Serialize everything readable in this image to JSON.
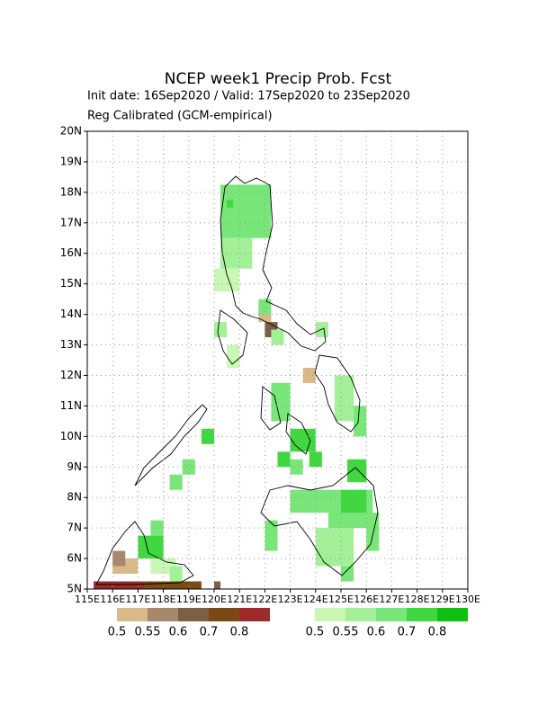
{
  "chart_data": {
    "type": "grid-map",
    "title": "NCEP week1 Precip Prob. Fcst",
    "subtitle": "Init date: 16Sep2020 / Valid: 17Sep2020 to 23Sep2020",
    "note": "Reg Calibrated (GCM-empirical)",
    "xlim": [
      115,
      130
    ],
    "ylim": [
      5,
      20
    ],
    "grid": true,
    "xticks": [
      {
        "value": 115,
        "label": "115E"
      },
      {
        "value": 116,
        "label": "116E"
      },
      {
        "value": 117,
        "label": "117E"
      },
      {
        "value": 118,
        "label": "118E"
      },
      {
        "value": 119,
        "label": "119E"
      },
      {
        "value": 120,
        "label": "120E"
      },
      {
        "value": 121,
        "label": "121E"
      },
      {
        "value": 122,
        "label": "122E"
      },
      {
        "value": 123,
        "label": "123E"
      },
      {
        "value": 124,
        "label": "124E"
      },
      {
        "value": 125,
        "label": "125E"
      },
      {
        "value": 126,
        "label": "126E"
      },
      {
        "value": 127,
        "label": "127E"
      },
      {
        "value": 128,
        "label": "128E"
      },
      {
        "value": 129,
        "label": "129E"
      },
      {
        "value": 130,
        "label": "130E"
      }
    ],
    "yticks": [
      {
        "value": 5,
        "label": "5N"
      },
      {
        "value": 6,
        "label": "6N"
      },
      {
        "value": 7,
        "label": "7N"
      },
      {
        "value": 8,
        "label": "8N"
      },
      {
        "value": 9,
        "label": "9N"
      },
      {
        "value": 10,
        "label": "10N"
      },
      {
        "value": 11,
        "label": "11N"
      },
      {
        "value": 12,
        "label": "12N"
      },
      {
        "value": 13,
        "label": "13N"
      },
      {
        "value": 14,
        "label": "14N"
      },
      {
        "value": 15,
        "label": "15N"
      },
      {
        "value": 16,
        "label": "16N"
      },
      {
        "value": 17,
        "label": "17N"
      },
      {
        "value": 18,
        "label": "18N"
      },
      {
        "value": 19,
        "label": "19N"
      },
      {
        "value": 20,
        "label": "20N"
      }
    ],
    "colorbars": [
      {
        "colors": [
          "#d9b88a",
          "#a8886c",
          "#7d5f45",
          "#7a4a14",
          "#9e2b2b"
        ],
        "labels": [
          0.5,
          0.55,
          0.6,
          0.7,
          0.8
        ],
        "cells": [
          [
            121.75,
            13.75,
            122.25,
            14.25,
            0.5
          ],
          [
            122,
            13.25,
            122.5,
            13.75,
            0.6
          ],
          [
            123.5,
            11.75,
            124,
            12.25,
            0.5
          ],
          [
            116,
            5.5,
            117,
            6,
            0.5
          ],
          [
            116,
            5.75,
            116.5,
            6.25,
            0.55
          ],
          [
            115.25,
            5,
            117.25,
            5.25,
            0.8
          ],
          [
            117.25,
            5,
            119.5,
            5.25,
            0.7
          ],
          [
            120,
            5,
            120.25,
            5.25,
            0.6
          ]
        ]
      },
      {
        "colors": [
          "#c8f8b4",
          "#a4f098",
          "#78e678",
          "#40d840",
          "#10c010"
        ],
        "labels": [
          0.5,
          0.55,
          0.6,
          0.7,
          0.8
        ],
        "cells": [
          [
            120.25,
            16.5,
            122.25,
            18.25,
            0.6
          ],
          [
            120.5,
            17.5,
            120.75,
            17.75,
            0.7
          ],
          [
            120.25,
            15.5,
            121.5,
            16.5,
            0.55
          ],
          [
            120,
            14.75,
            121,
            15.5,
            0.5
          ],
          [
            121.75,
            14,
            122.25,
            14.5,
            0.6
          ],
          [
            120,
            13.25,
            120.5,
            13.75,
            0.55
          ],
          [
            122.25,
            13,
            122.75,
            13.5,
            0.55
          ],
          [
            124,
            13.25,
            124.5,
            13.75,
            0.55
          ],
          [
            120.5,
            12.25,
            121,
            13,
            0.5
          ],
          [
            122.25,
            10.5,
            123,
            11.75,
            0.6
          ],
          [
            124.75,
            10.5,
            125.5,
            12,
            0.55
          ],
          [
            125.5,
            10,
            126,
            11,
            0.6
          ],
          [
            123,
            9.5,
            124,
            10.25,
            0.7
          ],
          [
            122.5,
            9,
            123,
            9.5,
            0.7
          ],
          [
            123.75,
            9,
            124.25,
            9.5,
            0.7
          ],
          [
            123,
            8.75,
            123.5,
            9.25,
            0.6
          ],
          [
            125.25,
            8.5,
            126,
            9.25,
            0.7
          ],
          [
            123,
            7.5,
            124.5,
            8.25,
            0.6
          ],
          [
            124.5,
            7,
            126.25,
            8.25,
            0.6
          ],
          [
            125,
            7.5,
            126,
            8.25,
            0.7
          ],
          [
            124,
            5.75,
            125.5,
            7,
            0.55
          ],
          [
            125,
            5.25,
            125.5,
            5.75,
            0.6
          ],
          [
            126,
            6.25,
            126.5,
            7.5,
            0.6
          ],
          [
            122,
            6.25,
            122.5,
            7.25,
            0.6
          ],
          [
            119.5,
            9.75,
            120,
            10.25,
            0.7
          ],
          [
            118.75,
            8.75,
            119.25,
            9.25,
            0.6
          ],
          [
            118.25,
            8.25,
            118.75,
            8.75,
            0.6
          ],
          [
            117.5,
            6.75,
            118,
            7.25,
            0.6
          ],
          [
            117,
            6,
            118,
            6.75,
            0.7
          ],
          [
            117.5,
            5.5,
            118.5,
            6,
            0.5
          ],
          [
            118.25,
            5.25,
            118.75,
            5.75,
            0.55
          ]
        ]
      }
    ]
  }
}
